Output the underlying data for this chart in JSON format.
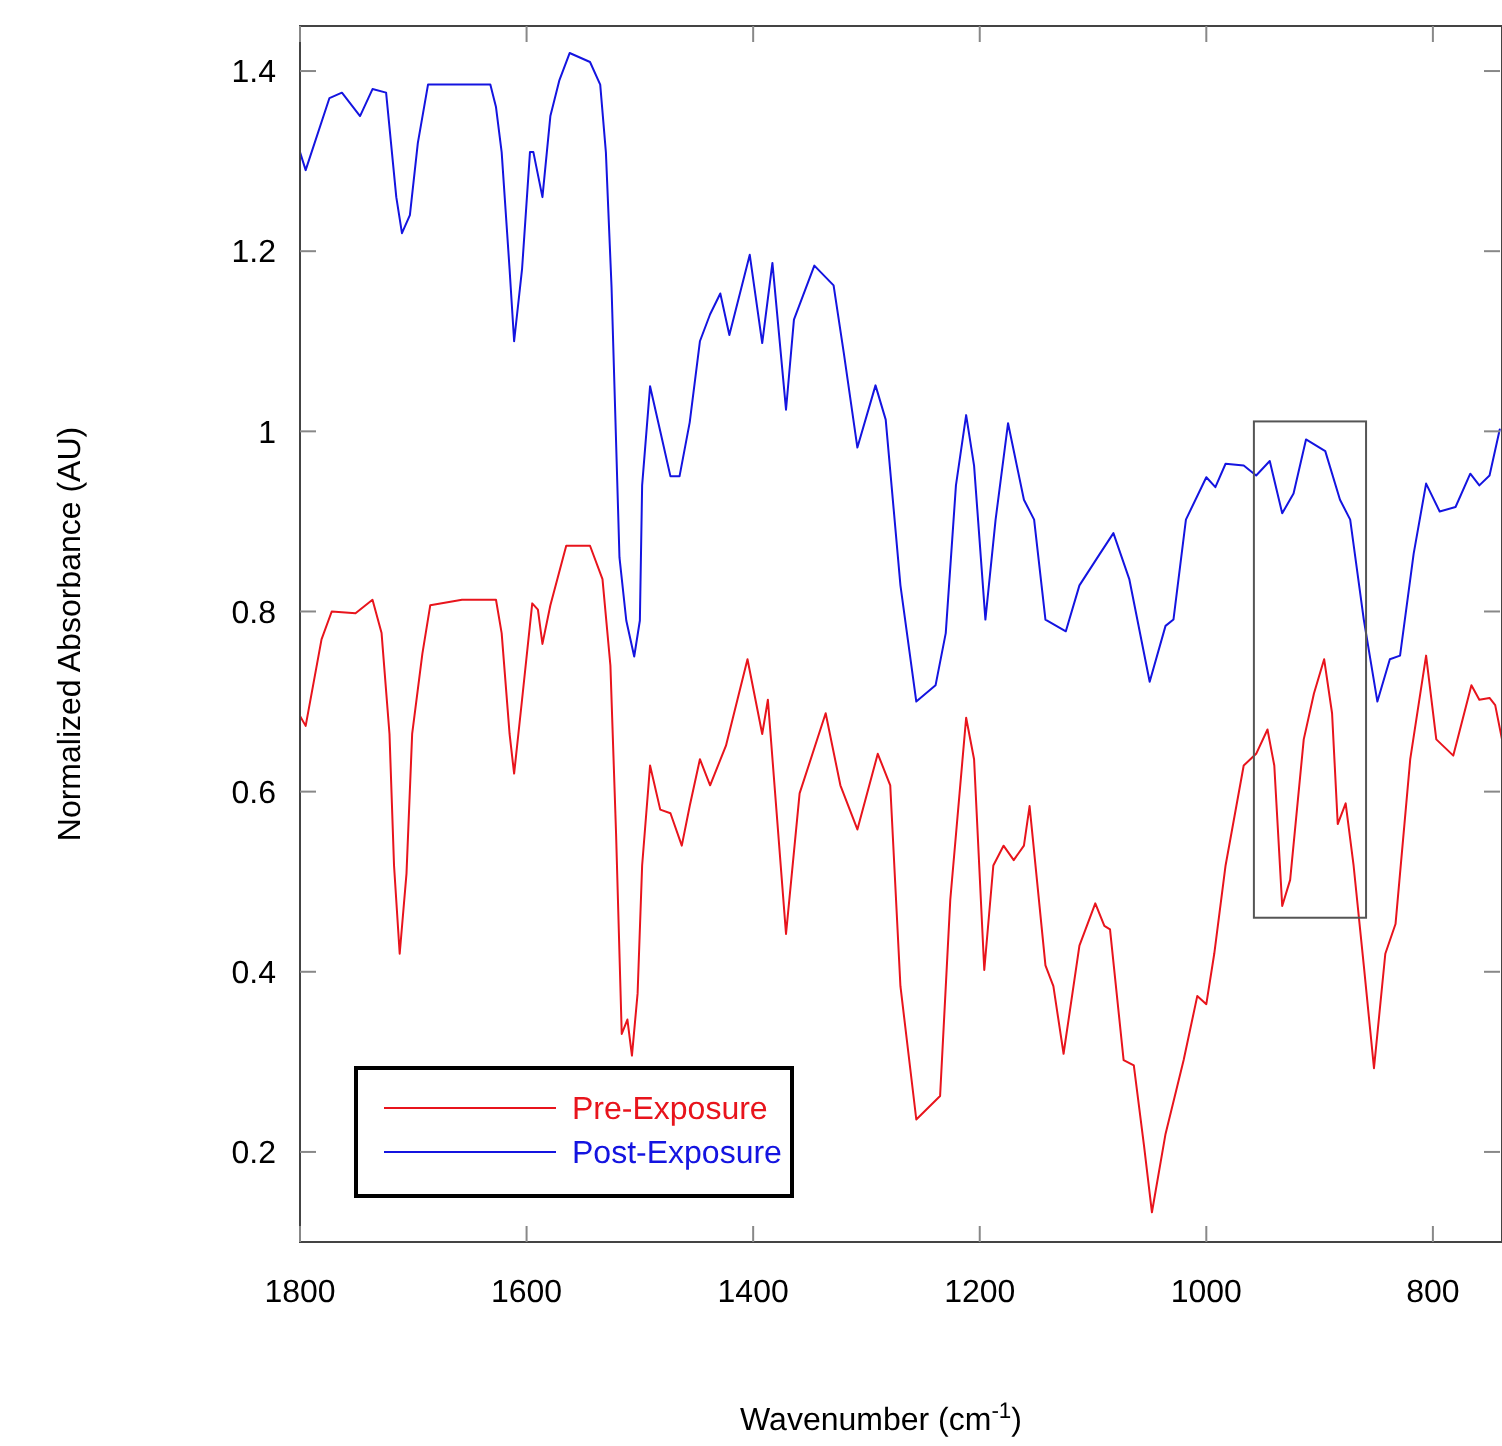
{
  "chart_data": {
    "type": "line",
    "xlabel": "Wavenumber (cm$^{-1}$)",
    "ylabel": "Normalized Absorbance (AU)",
    "xlim": [
      1800,
      739
    ],
    "ylim": [
      0.1,
      1.45
    ],
    "xticks": [
      1800,
      1600,
      1400,
      1200,
      1000,
      800
    ],
    "yticks": [
      0.2,
      0.4,
      0.6,
      0.8,
      1,
      1.2,
      1.4
    ],
    "grid": false,
    "legend": "bottom left",
    "marker": "none",
    "line_style": "solid",
    "series": [
      {
        "name": "Pre-Exposure",
        "color": "#e8141c",
        "x": [
          1800,
          1795,
          1781,
          1772,
          1751,
          1736,
          1728,
          1721,
          1717,
          1712,
          1706,
          1701,
          1692,
          1685,
          1657,
          1627,
          1622,
          1615,
          1611,
          1604,
          1595,
          1590,
          1586,
          1579,
          1565,
          1544,
          1533,
          1526,
          1521,
          1516,
          1511,
          1507,
          1502,
          1498,
          1491,
          1482,
          1473,
          1463,
          1456,
          1447,
          1438,
          1424,
          1405,
          1392,
          1387,
          1371,
          1359,
          1336,
          1323,
          1308,
          1290,
          1279,
          1270,
          1256,
          1235,
          1226,
          1212,
          1205,
          1196,
          1188,
          1179,
          1170,
          1161,
          1156,
          1142,
          1135,
          1126,
          1112,
          1098,
          1090,
          1085,
          1073,
          1064,
          1055,
          1048,
          1036,
          1020,
          1008,
          1000,
          993,
          983,
          967,
          956,
          946,
          940,
          933,
          926,
          914,
          905,
          896,
          889,
          884,
          877,
          870,
          861,
          852,
          842,
          833,
          820,
          806,
          797,
          782,
          766,
          759,
          750,
          745,
          739
        ],
        "values": [
          0.684,
          0.673,
          0.769,
          0.8,
          0.798,
          0.813,
          0.776,
          0.664,
          0.518,
          0.42,
          0.509,
          0.664,
          0.753,
          0.807,
          0.813,
          0.813,
          0.776,
          0.664,
          0.62,
          0.702,
          0.809,
          0.802,
          0.764,
          0.807,
          0.873,
          0.873,
          0.836,
          0.74,
          0.553,
          0.331,
          0.347,
          0.307,
          0.376,
          0.518,
          0.629,
          0.58,
          0.576,
          0.54,
          0.584,
          0.636,
          0.607,
          0.651,
          0.747,
          0.664,
          0.702,
          0.442,
          0.598,
          0.687,
          0.607,
          0.558,
          0.642,
          0.607,
          0.384,
          0.236,
          0.262,
          0.48,
          0.682,
          0.636,
          0.402,
          0.518,
          0.54,
          0.524,
          0.54,
          0.584,
          0.407,
          0.384,
          0.309,
          0.429,
          0.476,
          0.451,
          0.447,
          0.302,
          0.296,
          0.207,
          0.133,
          0.22,
          0.302,
          0.373,
          0.364,
          0.42,
          0.518,
          0.629,
          0.642,
          0.669,
          0.629,
          0.473,
          0.502,
          0.658,
          0.709,
          0.747,
          0.687,
          0.564,
          0.587,
          0.518,
          0.407,
          0.293,
          0.42,
          0.453,
          0.636,
          0.751,
          0.658,
          0.64,
          0.718,
          0.702,
          0.704,
          0.696,
          0.658
        ]
      },
      {
        "name": "Post-Exposure",
        "color": "#1414e0",
        "x": [
          1800,
          1795,
          1774,
          1763,
          1747,
          1736,
          1724,
          1715,
          1710,
          1703,
          1696,
          1687,
          1657,
          1632,
          1627,
          1622,
          1615,
          1611,
          1604,
          1597,
          1594,
          1586,
          1579,
          1571,
          1562,
          1544,
          1535,
          1530,
          1525,
          1518,
          1512,
          1505,
          1500,
          1498,
          1491,
          1482,
          1473,
          1465,
          1456,
          1447,
          1438,
          1429,
          1421,
          1403,
          1392,
          1383,
          1371,
          1364,
          1346,
          1329,
          1320,
          1308,
          1292,
          1283,
          1270,
          1256,
          1239,
          1230,
          1221,
          1212,
          1205,
          1195,
          1186,
          1175,
          1161,
          1152,
          1142,
          1124,
          1112,
          1094,
          1082,
          1068,
          1050,
          1036,
          1029,
          1018,
          1000,
          992,
          983,
          967,
          956,
          944,
          933,
          923,
          912,
          895,
          882,
          873,
          861,
          849,
          838,
          829,
          817,
          806,
          794,
          780,
          767,
          759,
          750,
          741
        ],
        "values": [
          1.31,
          1.29,
          1.37,
          1.376,
          1.35,
          1.38,
          1.376,
          1.26,
          1.22,
          1.24,
          1.32,
          1.385,
          1.385,
          1.385,
          1.36,
          1.31,
          1.18,
          1.1,
          1.18,
          1.31,
          1.31,
          1.26,
          1.35,
          1.39,
          1.42,
          1.41,
          1.385,
          1.31,
          1.16,
          0.86,
          0.79,
          0.75,
          0.79,
          0.94,
          1.05,
          1,
          0.95,
          0.95,
          1.01,
          1.1,
          1.13,
          1.153,
          1.107,
          1.196,
          1.098,
          1.187,
          1.024,
          1.124,
          1.184,
          1.162,
          1.087,
          0.982,
          1.051,
          1.013,
          0.829,
          0.7,
          0.718,
          0.776,
          0.94,
          1.018,
          0.962,
          0.791,
          0.902,
          1.009,
          0.924,
          0.902,
          0.791,
          0.778,
          0.829,
          0.864,
          0.887,
          0.836,
          0.722,
          0.784,
          0.791,
          0.902,
          0.949,
          0.938,
          0.964,
          0.962,
          0.951,
          0.967,
          0.909,
          0.931,
          0.991,
          0.978,
          0.924,
          0.902,
          0.791,
          0.7,
          0.747,
          0.751,
          0.864,
          0.942,
          0.911,
          0.916,
          0.953,
          0.94,
          0.951,
          1.002
        ]
      }
    ]
  }
}
